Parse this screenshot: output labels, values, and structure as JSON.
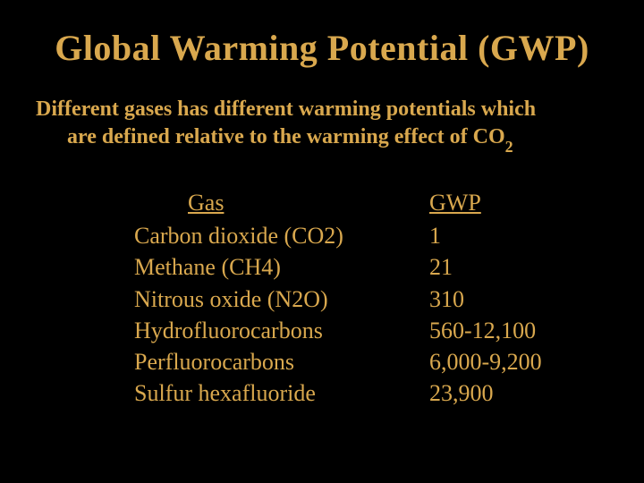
{
  "title": "Global Warming Potential (GWP)",
  "subtitle_line1": "Different gases has different warming potentials which",
  "subtitle_line2_pre": "are defined relative to the warming effect of CO",
  "subtitle_line2_sub": "2",
  "table": {
    "gas_header": "Gas",
    "gwp_header": "GWP",
    "gas_rows": [
      "Carbon dioxide (CO2)",
      "Methane (CH4)",
      "Nitrous oxide (N2O)",
      "Hydrofluorocarbons",
      "Perfluorocarbons",
      "Sulfur hexafluoride"
    ],
    "gwp_rows": [
      "1",
      "21",
      "310",
      "560-12,100",
      "6,000-9,200",
      "23,900"
    ]
  },
  "colors": {
    "background": "#000000",
    "text": "#d9a84e"
  },
  "typography": {
    "title_fontsize": 40,
    "subtitle_fontsize": 24,
    "body_fontsize": 26,
    "font_family": "Georgia, Times New Roman, serif"
  }
}
